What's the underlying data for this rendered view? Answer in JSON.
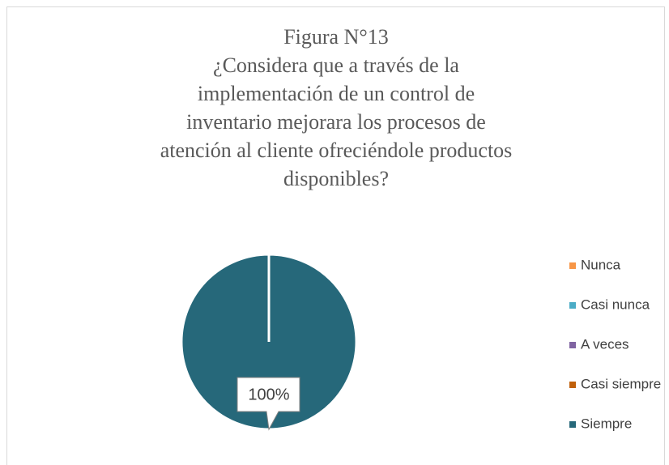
{
  "chart_data": {
    "type": "pie",
    "title": "Figura N°13",
    "subtitle": "¿Considera que a través de la implementación de un control de inventario mejorara los procesos de atención al cliente ofreciéndole productos disponibles?",
    "categories": [
      "Nunca",
      "Casi nunca",
      "A veces",
      "Casi siempre",
      "Siempre"
    ],
    "values": [
      0,
      0,
      0,
      0,
      100
    ],
    "value_labels": [
      null,
      null,
      null,
      null,
      "100%"
    ],
    "colors": [
      "#f79646",
      "#4bacc6",
      "#8064a2",
      "#c0600a",
      "#26687a"
    ],
    "legend": "right"
  }
}
